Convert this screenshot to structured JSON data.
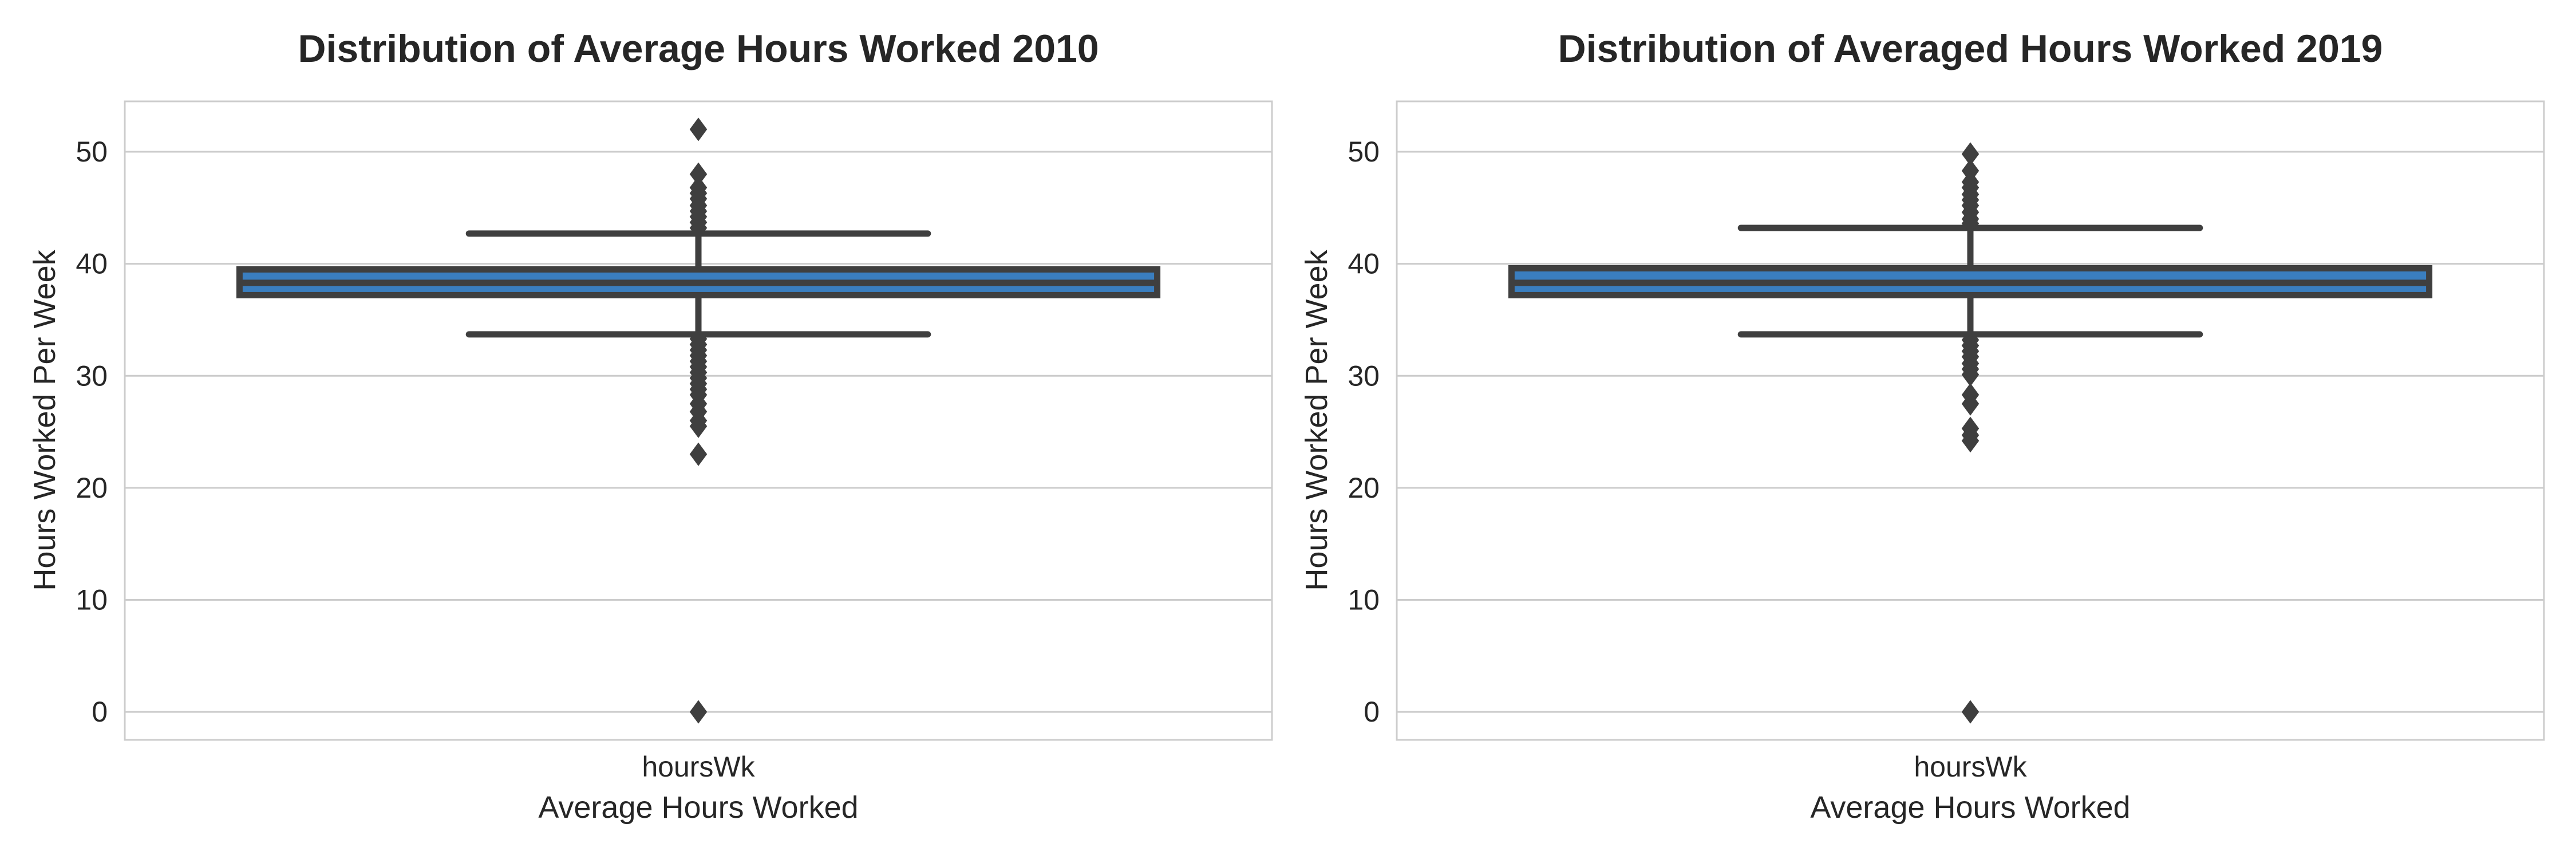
{
  "chart_data": [
    {
      "type": "box",
      "title": "Distribution of Average Hours Worked 2010",
      "xlabel": "Average Hours Worked",
      "ylabel": "Hours Worked Per Week",
      "categories": [
        "hoursWk"
      ],
      "ylim": [
        -2.5,
        54.5
      ],
      "yticks": [
        "0",
        "10",
        "20",
        "30",
        "40",
        "50"
      ],
      "grid": true,
      "box": {
        "whisker_low": 33.7,
        "q1": 37.2,
        "median": 38.3,
        "q3": 39.5,
        "whisker_high": 42.7
      },
      "outliers": [
        52.0,
        48.0,
        46.8,
        46.3,
        45.8,
        45.2,
        44.7,
        44.2,
        43.7,
        43.2,
        33.3,
        32.8,
        32.3,
        31.8,
        31.3,
        30.8,
        30.3,
        29.8,
        29.3,
        28.8,
        28.3,
        27.5,
        26.8,
        26.0,
        25.5,
        23.0,
        0.0
      ],
      "box_color": "#3a7ebf",
      "line_color": "#3f3f3f"
    },
    {
      "type": "box",
      "title": "Distribution of Averaged Hours Worked 2019",
      "xlabel": "Average Hours Worked",
      "ylabel": "Hours Worked Per Week",
      "categories": [
        "hoursWk"
      ],
      "ylim": [
        -2.5,
        54.5
      ],
      "yticks": [
        "0",
        "10",
        "20",
        "30",
        "40",
        "50"
      ],
      "grid": true,
      "box": {
        "whisker_low": 33.7,
        "q1": 37.2,
        "median": 38.3,
        "q3": 39.6,
        "whisker_high": 43.2
      },
      "outliers": [
        49.8,
        48.3,
        47.3,
        46.8,
        46.2,
        45.7,
        45.2,
        44.6,
        44.0,
        43.6,
        33.2,
        32.7,
        32.2,
        31.7,
        31.1,
        30.6,
        30.1,
        28.3,
        27.5,
        25.3,
        24.7,
        24.2,
        0.0
      ],
      "box_color": "#3a7ebf",
      "line_color": "#3f3f3f"
    }
  ]
}
